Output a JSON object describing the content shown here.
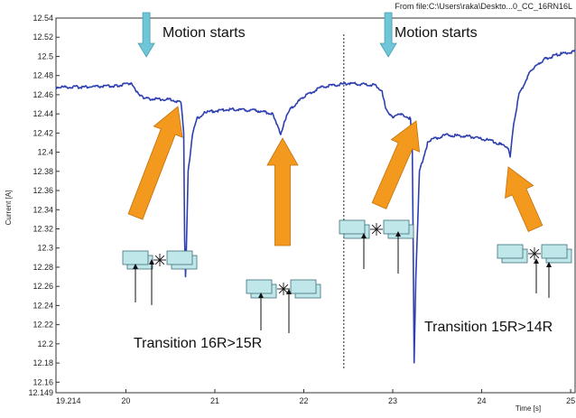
{
  "header": {
    "source_text": "From file:C:\\Users\\raka\\Deskto...0_CC_16RN16L"
  },
  "chart_data": {
    "type": "line",
    "xlabel": "Time [s]",
    "ylabel": "Current [A]",
    "xlim": [
      19.214,
      25.05
    ],
    "ylim": [
      12.149,
      12.54
    ],
    "x_ticks": [
      19.214,
      20,
      21,
      22,
      23,
      24,
      25
    ],
    "x_tick_labels": [
      "19.214",
      "20",
      "21",
      "22",
      "23",
      "24",
      "25"
    ],
    "y_ticks": [
      12.149,
      12.16,
      12.18,
      12.2,
      12.22,
      12.24,
      12.26,
      12.28,
      12.3,
      12.32,
      12.34,
      12.36,
      12.38,
      12.4,
      12.42,
      12.44,
      12.46,
      12.48,
      12.5,
      12.52,
      12.54
    ],
    "y_tick_labels": [
      "12.149",
      "12.16",
      "12.18",
      "12.2",
      "12.22",
      "12.24",
      "12.26",
      "12.28",
      "12.3",
      "12.32",
      "12.34",
      "12.36",
      "12.38",
      "12.4",
      "12.42",
      "12.44",
      "12.46",
      "12.48",
      "12.5",
      "12.52",
      "12.54"
    ],
    "grid": false,
    "line_color": "#2e3fb0",
    "series": [
      {
        "values": [
          [
            19.214,
            12.468
          ],
          [
            19.5,
            12.468
          ],
          [
            19.9,
            12.469
          ],
          [
            20.05,
            12.472
          ],
          [
            20.1,
            12.466
          ],
          [
            20.2,
            12.456
          ],
          [
            20.5,
            12.455
          ],
          [
            20.62,
            12.452
          ],
          [
            20.65,
            12.42
          ],
          [
            20.66,
            12.31
          ],
          [
            20.67,
            12.27
          ],
          [
            20.68,
            12.3
          ],
          [
            20.7,
            12.38
          ],
          [
            20.75,
            12.42
          ],
          [
            20.8,
            12.435
          ],
          [
            20.9,
            12.442
          ],
          [
            21.2,
            12.445
          ],
          [
            21.5,
            12.443
          ],
          [
            21.65,
            12.44
          ],
          [
            21.72,
            12.425
          ],
          [
            21.74,
            12.418
          ],
          [
            21.78,
            12.432
          ],
          [
            21.85,
            12.445
          ],
          [
            22.0,
            12.458
          ],
          [
            22.2,
            12.468
          ],
          [
            22.5,
            12.472
          ],
          [
            22.8,
            12.47
          ],
          [
            22.88,
            12.464
          ],
          [
            22.92,
            12.445
          ],
          [
            23.0,
            12.437
          ],
          [
            23.1,
            12.44
          ],
          [
            23.2,
            12.435
          ],
          [
            23.22,
            12.4
          ],
          [
            23.23,
            12.3
          ],
          [
            23.24,
            12.18
          ],
          [
            23.26,
            12.27
          ],
          [
            23.3,
            12.38
          ],
          [
            23.4,
            12.412
          ],
          [
            23.6,
            12.418
          ],
          [
            23.9,
            12.416
          ],
          [
            24.1,
            12.412
          ],
          [
            24.3,
            12.405
          ],
          [
            24.32,
            12.395
          ],
          [
            24.36,
            12.43
          ],
          [
            24.42,
            12.46
          ],
          [
            24.55,
            12.485
          ],
          [
            24.7,
            12.497
          ],
          [
            24.85,
            12.502
          ],
          [
            25.05,
            12.505
          ]
        ]
      }
    ],
    "annotations": {
      "motion_label_1": "Motion starts",
      "motion_label_2": "Motion starts",
      "transition_label_1": "Transition 16R>15R",
      "transition_label_2": "Transition 15R>14R"
    },
    "motion_start_times": [
      20.23,
      22.95
    ],
    "divider_time": 22.45,
    "colors": {
      "down_arrow": "#6fc6d6",
      "big_arrow": "#f39a1e",
      "tile_fill": "#bfe6e8",
      "tile_stroke": "#3d6f7a"
    }
  }
}
